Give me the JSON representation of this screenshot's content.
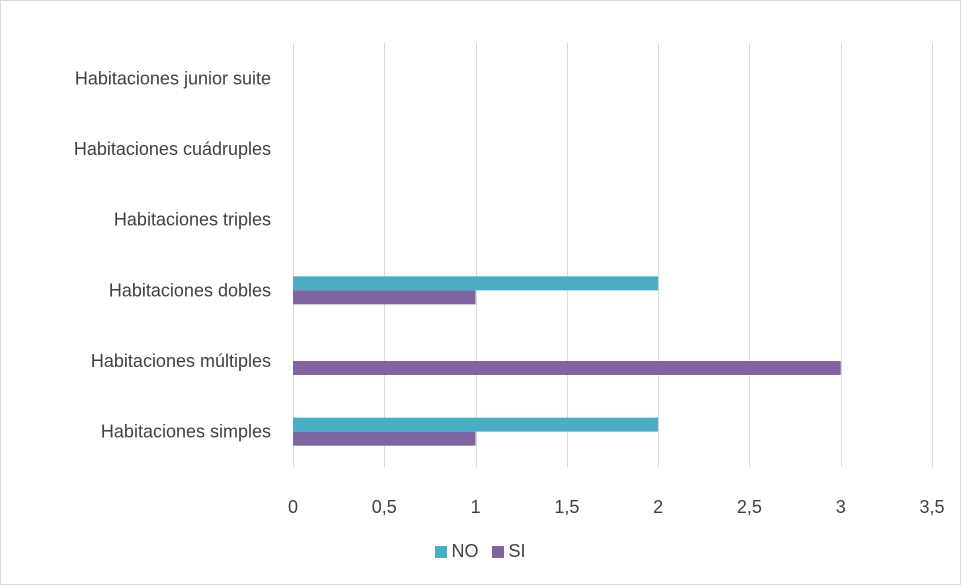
{
  "chart_data": {
    "type": "bar",
    "orientation": "horizontal",
    "categories": [
      "Habitaciones junior suite",
      "Habitaciones cuádruples",
      "Habitaciones triples",
      "Habitaciones dobles",
      "Habitaciones múltiples",
      "Habitaciones simples"
    ],
    "series": [
      {
        "name": "NO",
        "color": "#4BACC6",
        "values": [
          0,
          0,
          0,
          2,
          0,
          2
        ]
      },
      {
        "name": "SI",
        "color": "#8064A2",
        "values": [
          0,
          0,
          0,
          1,
          3,
          1
        ]
      }
    ],
    "xticks": [
      "0",
      "0,5",
      "1",
      "1,5",
      "2",
      "2,5",
      "3",
      "3,5"
    ],
    "xlim": [
      0,
      3.5
    ],
    "grid": "vertical",
    "legend_position": "bottom"
  }
}
